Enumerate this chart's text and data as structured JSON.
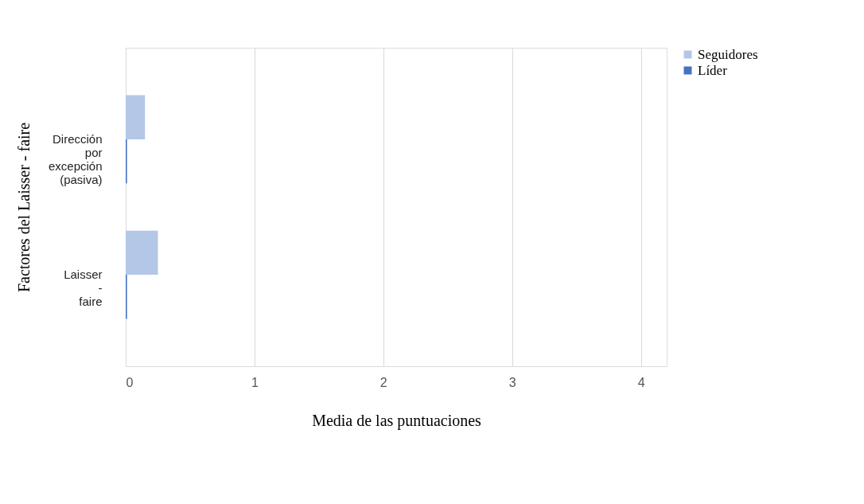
{
  "chart_data": {
    "type": "bar",
    "orientation": "horizontal",
    "xlabel": "Media de las puntuaciones",
    "ylabel": "Factores del Laisser - faire",
    "categories": [
      "Dirección por excepción (pasiva)",
      "Laisser - faire"
    ],
    "series": [
      {
        "name": "Seguidores",
        "color": "#b4c7e7",
        "values": [
          0.15,
          0.25
        ]
      },
      {
        "name": "Líder",
        "color": "#4472c4",
        "values": [
          0.01,
          0.01
        ]
      }
    ],
    "xlim": [
      0,
      4.2
    ],
    "xticks": [
      0,
      1,
      2,
      3,
      4
    ],
    "grid": "x",
    "legend": "right"
  }
}
